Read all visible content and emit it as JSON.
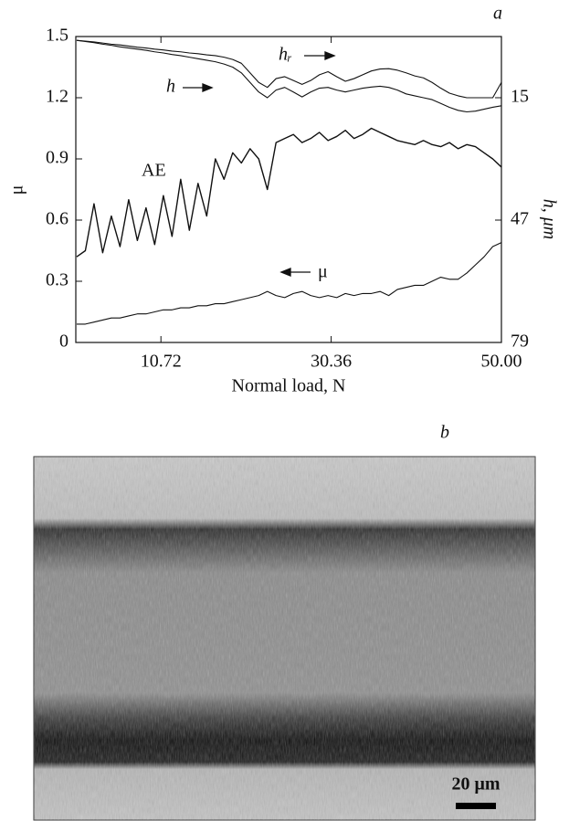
{
  "chart_data": {
    "type": "line",
    "panel_label": "a",
    "xlabel": "Normal load, N",
    "ylabel": "μ",
    "y2label": "h, μm",
    "x": [
      1,
      2,
      3,
      4,
      5,
      6,
      7,
      8,
      9,
      10,
      11,
      12,
      13,
      14,
      15,
      16,
      17,
      18,
      19,
      20,
      21,
      22,
      23,
      24,
      25,
      26,
      27,
      28,
      29,
      30,
      31,
      32,
      33,
      34,
      35,
      36,
      37,
      38,
      39,
      40,
      41,
      42,
      43,
      44,
      45,
      46,
      47,
      48,
      49,
      50
    ],
    "xlim": [
      0.9,
      50
    ],
    "xticks": [
      10.72,
      30.36,
      {
        "value": 50,
        "label": "50.00"
      }
    ],
    "ylim": [
      0,
      1.5
    ],
    "yticks": [
      0,
      0.3,
      0.6,
      0.9,
      1.2,
      1.5
    ],
    "y2lim": [
      79,
      -1
    ],
    "y2ticks": [
      15,
      47,
      79
    ],
    "series": [
      {
        "name": "μ",
        "color": "#111111",
        "values": [
          0.09,
          0.09,
          0.1,
          0.11,
          0.12,
          0.12,
          0.13,
          0.14,
          0.14,
          0.15,
          0.16,
          0.16,
          0.17,
          0.17,
          0.18,
          0.18,
          0.19,
          0.19,
          0.2,
          0.21,
          0.22,
          0.23,
          0.25,
          0.23,
          0.22,
          0.24,
          0.25,
          0.23,
          0.22,
          0.23,
          0.22,
          0.24,
          0.23,
          0.24,
          0.24,
          0.25,
          0.23,
          0.26,
          0.27,
          0.28,
          0.28,
          0.3,
          0.32,
          0.31,
          0.31,
          0.34,
          0.38,
          0.42,
          0.47,
          0.49
        ]
      },
      {
        "name": "AE",
        "color": "#111111",
        "values": [
          0.42,
          0.45,
          0.68,
          0.44,
          0.62,
          0.47,
          0.7,
          0.5,
          0.66,
          0.48,
          0.72,
          0.52,
          0.8,
          0.55,
          0.78,
          0.62,
          0.9,
          0.8,
          0.93,
          0.88,
          0.95,
          0.9,
          0.75,
          0.98,
          1.0,
          1.02,
          0.98,
          1.0,
          1.03,
          0.99,
          1.01,
          1.04,
          1.0,
          1.02,
          1.05,
          1.03,
          1.01,
          0.99,
          0.98,
          0.97,
          0.99,
          0.97,
          0.96,
          0.98,
          0.95,
          0.97,
          0.96,
          0.93,
          0.9,
          0.86
        ]
      },
      {
        "name": "h",
        "color": "#111111",
        "axis": "y2",
        "values": [
          0,
          0.3,
          0.6,
          1,
          1.3,
          1.7,
          2,
          2.3,
          2.6,
          3,
          3.3,
          3.7,
          4,
          4.4,
          4.8,
          5.2,
          5.6,
          6.2,
          7,
          8.5,
          11,
          13.5,
          15,
          13,
          12.3,
          13.5,
          14.8,
          13.5,
          12.5,
          12.3,
          13,
          13.5,
          13,
          12.5,
          12.2,
          12,
          12.3,
          13,
          14,
          14.5,
          15,
          15.5,
          16.5,
          17.5,
          18.3,
          18.7,
          18.5,
          18,
          17.5,
          17.1
        ]
      },
      {
        "name": "hᵣ",
        "color": "#111111",
        "axis": "y2",
        "values": [
          0,
          0.2,
          0.4,
          0.7,
          1,
          1.2,
          1.5,
          1.8,
          2,
          2.3,
          2.5,
          2.8,
          3,
          3.3,
          3.5,
          3.8,
          4,
          4.4,
          5,
          6,
          8.5,
          11,
          12.3,
          10,
          9.5,
          10.5,
          11.5,
          10.5,
          9,
          8.2,
          9.5,
          10.7,
          10,
          9,
          8,
          7.5,
          7.4,
          7.8,
          8.5,
          9.3,
          9.8,
          11,
          12.5,
          13.8,
          14.5,
          15,
          15,
          15,
          15,
          11
        ]
      }
    ]
  },
  "micrograph": {
    "panel_label": "b",
    "scale_bar_label": "20 μm"
  }
}
